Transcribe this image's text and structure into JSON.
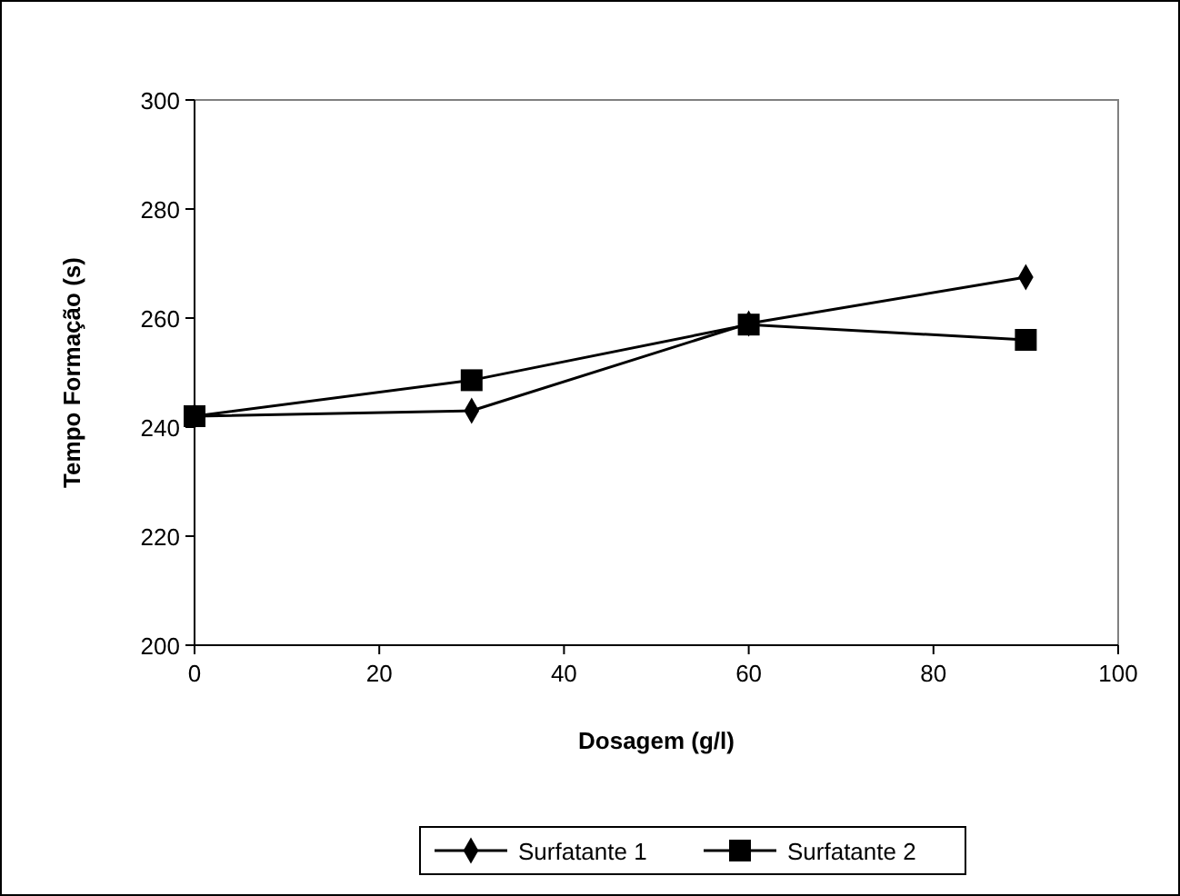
{
  "chart_data": {
    "type": "line",
    "xlabel": "Dosagem (g/l)",
    "ylabel": "Tempo Formação (s)",
    "xlim": [
      0,
      100
    ],
    "xticks": [
      0,
      20,
      40,
      60,
      80,
      100
    ],
    "ylim": [
      200,
      300
    ],
    "yticks": [
      200,
      220,
      240,
      260,
      280,
      300
    ],
    "grid": false,
    "legend": "bottom",
    "line_style": "solid",
    "series": [
      {
        "name": "Surfatante 1",
        "color": "#000000",
        "marker": "diamond",
        "x": [
          0,
          30,
          60,
          90
        ],
        "values": [
          242,
          243,
          259,
          267.5
        ]
      },
      {
        "name": "Surfatante 2",
        "color": "#000000",
        "marker": "square",
        "x": [
          0,
          30,
          60,
          90
        ],
        "values": [
          242,
          248.6,
          258.8,
          256
        ]
      }
    ]
  }
}
